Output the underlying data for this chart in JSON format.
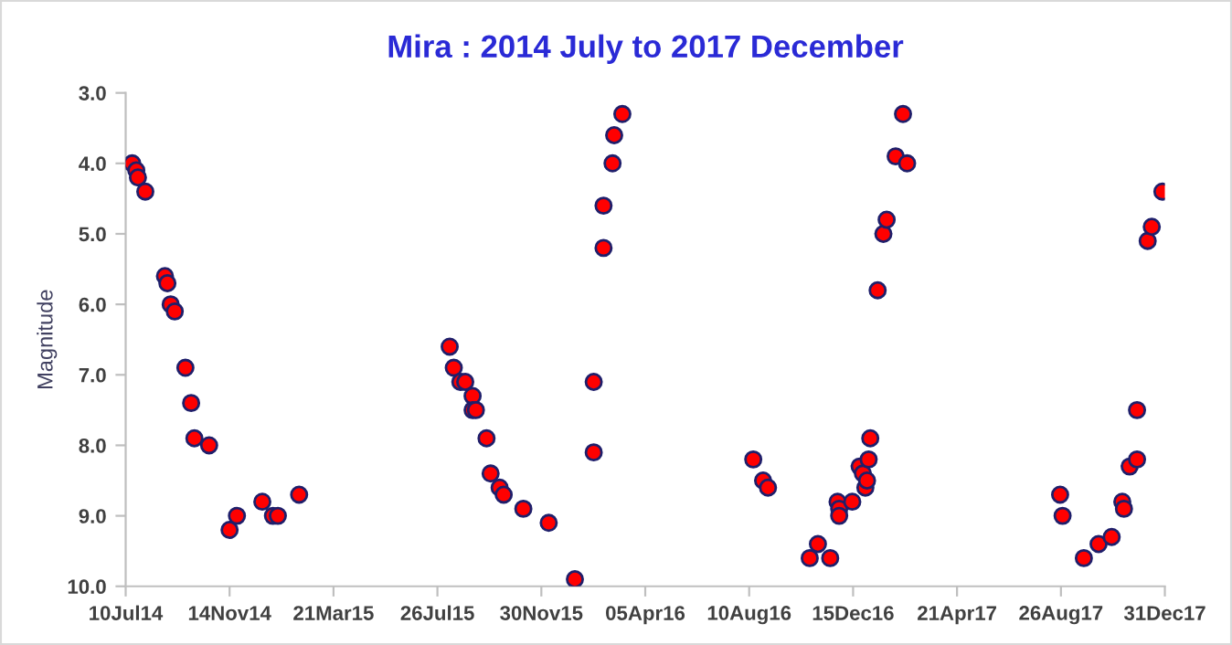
{
  "chart_data": {
    "type": "scatter",
    "title": "Mira : 2014 July to 2017 December",
    "ylabel": "Magnitude",
    "x": [
      "2014-07-18",
      "2014-07-23",
      "2014-07-25",
      "2014-08-03",
      "2014-08-27",
      "2014-08-30",
      "2014-09-03",
      "2014-09-08",
      "2014-09-21",
      "2014-09-28",
      "2014-10-02",
      "2014-10-20",
      "2014-11-14",
      "2014-11-23",
      "2014-12-24",
      "2015-01-06",
      "2015-01-12",
      "2015-02-07",
      "2015-08-10",
      "2015-08-15",
      "2015-08-23",
      "2015-08-29",
      "2015-09-07",
      "2015-09-07",
      "2015-09-11",
      "2015-09-24",
      "2015-09-29",
      "2015-10-10",
      "2015-10-15",
      "2015-11-08",
      "2015-12-09",
      "2016-01-10",
      "2016-02-02",
      "2016-02-02",
      "2016-02-14",
      "2016-02-14",
      "2016-02-25",
      "2016-02-27",
      "2016-03-08",
      "2016-08-15",
      "2016-08-27",
      "2016-09-02",
      "2016-10-23",
      "2016-11-02",
      "2016-11-17",
      "2016-11-26",
      "2016-11-28",
      "2016-11-28",
      "2016-12-14",
      "2016-12-23",
      "2016-12-27",
      "2016-12-30",
      "2017-01-01",
      "2017-01-03",
      "2017-01-05",
      "2017-01-14",
      "2017-01-21",
      "2017-01-25",
      "2017-02-05",
      "2017-02-14",
      "2017-02-19",
      "2017-08-25",
      "2017-08-28",
      "2017-09-23",
      "2017-10-11",
      "2017-10-27",
      "2017-11-09",
      "2017-11-11",
      "2017-11-18",
      "2017-11-27",
      "2017-11-27",
      "2017-12-10",
      "2017-12-15",
      "2017-12-28"
    ],
    "series": [
      {
        "color": "#ff0000",
        "values": [
          4.0,
          4.1,
          4.2,
          4.4,
          5.6,
          5.7,
          6.0,
          6.1,
          6.9,
          7.4,
          7.9,
          8.0,
          9.2,
          9.0,
          8.8,
          9.0,
          9.0,
          8.7,
          6.6,
          6.9,
          7.1,
          7.1,
          7.3,
          7.5,
          7.5,
          7.9,
          8.4,
          8.6,
          8.7,
          8.9,
          9.1,
          9.9,
          8.1,
          7.1,
          5.2,
          4.6,
          4.0,
          3.6,
          3.3,
          8.2,
          8.5,
          8.6,
          9.6,
          9.4,
          9.6,
          8.8,
          8.9,
          9.0,
          8.8,
          8.3,
          8.4,
          8.6,
          8.5,
          8.2,
          7.9,
          5.8,
          5.0,
          4.8,
          3.9,
          3.3,
          4.0,
          8.7,
          9.0,
          9.6,
          9.4,
          9.3,
          8.8,
          8.9,
          8.3,
          8.2,
          7.5,
          5.1,
          4.9,
          4.4
        ]
      }
    ],
    "xlim": [
      "2014-07-10",
      "2017-12-31"
    ],
    "xticks": [
      {
        "value": "2014-07-10",
        "label": "10Jul14"
      },
      {
        "value": "2014-11-14",
        "label": "14Nov14"
      },
      {
        "value": "2015-03-21",
        "label": "21Mar15"
      },
      {
        "value": "2015-07-26",
        "label": "26Jul15"
      },
      {
        "value": "2015-11-30",
        "label": "30Nov15"
      },
      {
        "value": "2016-04-05",
        "label": "05Apr16"
      },
      {
        "value": "2016-08-10",
        "label": "10Aug16"
      },
      {
        "value": "2016-12-15",
        "label": "15Dec16"
      },
      {
        "value": "2017-04-21",
        "label": "21Apr17"
      },
      {
        "value": "2017-08-26",
        "label": "26Aug17"
      },
      {
        "value": "2017-12-31",
        "label": "31Dec17"
      }
    ],
    "ylim": [
      10,
      3
    ],
    "yticks": [
      {
        "value": 3,
        "label": "3.0"
      },
      {
        "value": 4,
        "label": "4.0"
      },
      {
        "value": 5,
        "label": "5.0"
      },
      {
        "value": 6,
        "label": "6.0"
      },
      {
        "value": 7,
        "label": "7.0"
      },
      {
        "value": 8,
        "label": "8.0"
      },
      {
        "value": 9,
        "label": "9.0"
      },
      {
        "value": 10,
        "label": "10.0"
      }
    ],
    "grid": false,
    "marker": "circle"
  }
}
